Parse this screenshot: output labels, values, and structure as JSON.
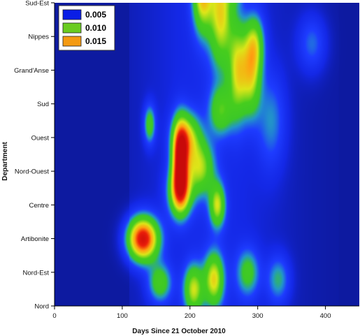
{
  "chart_data": {
    "type": "heatmap",
    "xlabel": "Days Since 21 October 2010",
    "ylabel": "Department",
    "xlim": [
      0,
      450
    ],
    "x_ticks": [
      0,
      100,
      200,
      300,
      400
    ],
    "categories": [
      "Nord",
      "Nord-Est",
      "Artibonite",
      "Centre",
      "Nord-Ouest",
      "Ouest",
      "Sud",
      "Grand'Anse",
      "Nippes",
      "Sud-Est"
    ],
    "legend": [
      {
        "label": "0.005",
        "color": "#0a1ee6"
      },
      {
        "label": "0.010",
        "color": "#6acc20"
      },
      {
        "label": "0.015",
        "color": "#f49a12"
      }
    ],
    "colors": {
      "background": "#0d1aa0",
      "low": "#1a3cff",
      "mid_low": "#22a8c8",
      "mid": "#42cc24",
      "mid_high": "#d8e61a",
      "high": "#ff9a10",
      "peak": "#e4160a"
    },
    "peaks": [
      {
        "x": 130,
        "y": 2.0,
        "value": 0.019,
        "sx": 16,
        "sy": 0.45
      },
      {
        "x": 185,
        "y": 4.3,
        "value": 0.018,
        "sx": 8,
        "sy": 0.75
      },
      {
        "x": 185,
        "y": 3.4,
        "value": 0.012,
        "sx": 12,
        "sy": 0.5
      },
      {
        "x": 195,
        "y": 5.0,
        "value": 0.01,
        "sx": 14,
        "sy": 0.5
      },
      {
        "x": 215,
        "y": 4.1,
        "value": 0.009,
        "sx": 14,
        "sy": 0.55
      },
      {
        "x": 240,
        "y": 3.0,
        "value": 0.01,
        "sx": 8,
        "sy": 0.45
      },
      {
        "x": 218,
        "y": 9.3,
        "value": 0.012,
        "sx": 10,
        "sy": 0.8
      },
      {
        "x": 245,
        "y": 8.7,
        "value": 0.011,
        "sx": 12,
        "sy": 1.1
      },
      {
        "x": 270,
        "y": 7.0,
        "value": 0.01,
        "sx": 10,
        "sy": 1.0
      },
      {
        "x": 290,
        "y": 6.8,
        "value": 0.009,
        "sx": 10,
        "sy": 0.8
      },
      {
        "x": 295,
        "y": 7.8,
        "value": 0.008,
        "sx": 10,
        "sy": 0.6
      },
      {
        "x": 265,
        "y": 9.7,
        "value": 0.008,
        "sx": 10,
        "sy": 0.4
      },
      {
        "x": 205,
        "y": 0.5,
        "value": 0.01,
        "sx": 10,
        "sy": 0.5
      },
      {
        "x": 235,
        "y": 0.8,
        "value": 0.011,
        "sx": 10,
        "sy": 0.55
      },
      {
        "x": 155,
        "y": 0.7,
        "value": 0.007,
        "sx": 12,
        "sy": 0.4
      },
      {
        "x": 285,
        "y": 1.0,
        "value": 0.006,
        "sx": 12,
        "sy": 0.5
      },
      {
        "x": 140,
        "y": 5.4,
        "value": 0.007,
        "sx": 6,
        "sy": 0.4
      },
      {
        "x": 245,
        "y": 5.8,
        "value": 0.007,
        "sx": 12,
        "sy": 0.5
      },
      {
        "x": 330,
        "y": 0.8,
        "value": 0.005,
        "sx": 12,
        "sy": 0.5
      },
      {
        "x": 380,
        "y": 7.8,
        "value": 0.004,
        "sx": 15,
        "sy": 0.6
      },
      {
        "x": 320,
        "y": 5.5,
        "value": 0.004,
        "sx": 15,
        "sy": 1.0
      }
    ]
  }
}
